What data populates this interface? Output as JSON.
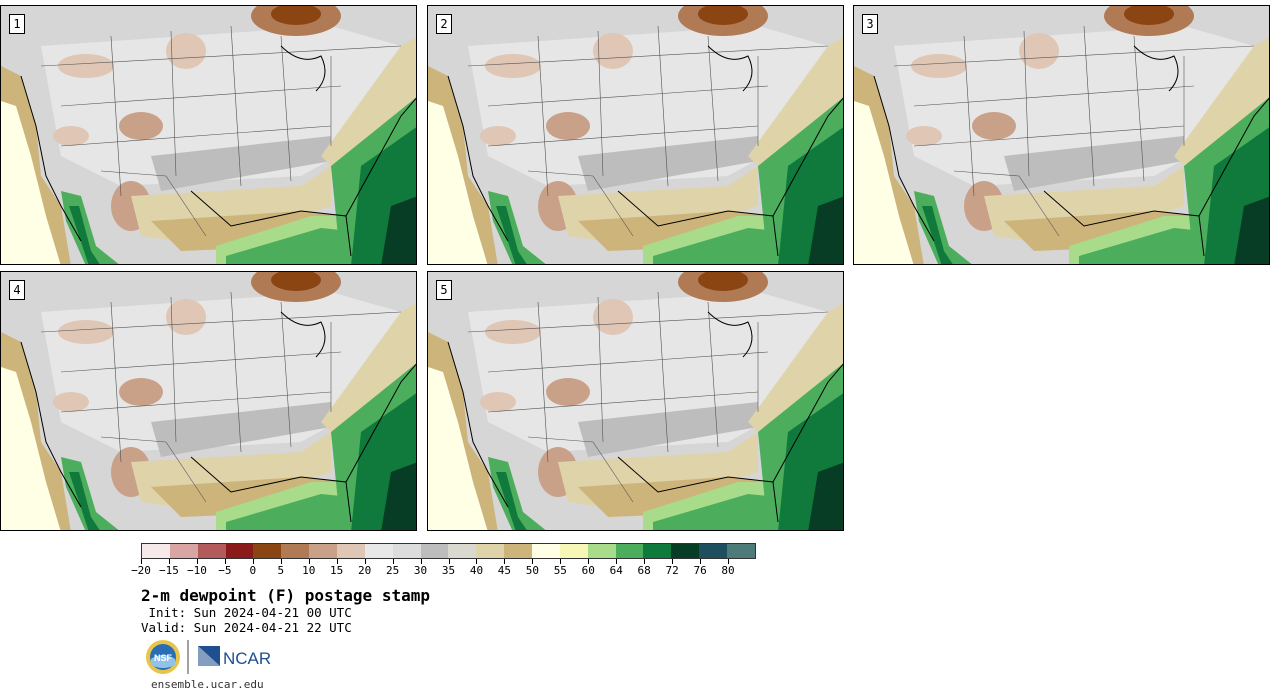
{
  "panels": [
    {
      "label": "1"
    },
    {
      "label": "2"
    },
    {
      "label": "3"
    },
    {
      "label": "4"
    },
    {
      "label": "5"
    }
  ],
  "colorbar": {
    "colors": [
      "#f5e9e9",
      "#d9a4a4",
      "#b35a5a",
      "#8b1a1a",
      "#8b4513",
      "#b07a55",
      "#c9a088",
      "#dfc6b5",
      "#e8e8e8",
      "#dcdcdc",
      "#bdbdbd",
      "#d9d9cf",
      "#dfd3aa",
      "#cdb47a",
      "#ffffe5",
      "#f7f7b8",
      "#a8dc8a",
      "#4cae5c",
      "#0f7a3c",
      "#063d24",
      "#1f4f5f",
      "#4f7a7a"
    ],
    "tick_labels": [
      "−20",
      "−15",
      "−10",
      "−5",
      "0",
      "5",
      "10",
      "15",
      "20",
      "25",
      "30",
      "35",
      "40",
      "45",
      "50",
      "55",
      "60",
      "64",
      "68",
      "72",
      "76",
      "80"
    ]
  },
  "title": "2-m dewpoint (F) postage stamp",
  "init": " Init: Sun 2024-04-21 00 UTC",
  "valid": "Valid: Sun 2024-04-21 22 UTC",
  "logos": {
    "nsf": "NSF",
    "ncar": "NCAR"
  },
  "url": "ensemble.ucar.edu"
}
